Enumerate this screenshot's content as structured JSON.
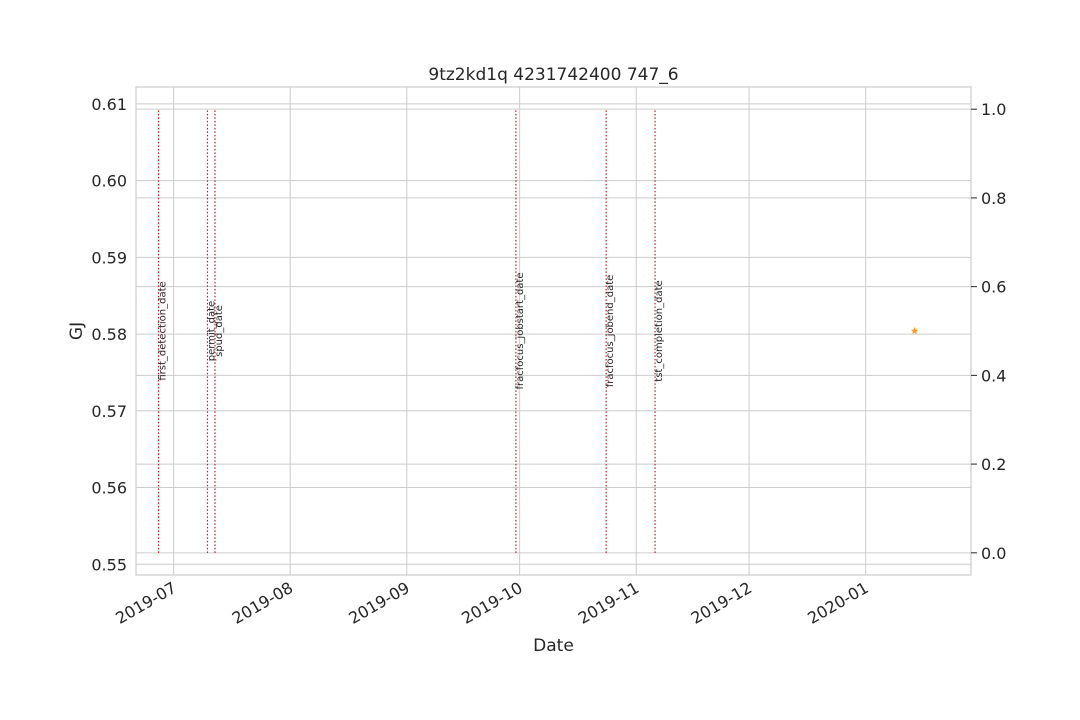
{
  "chart_data": {
    "type": "line",
    "title": "9tz2kd1q 4231742400 747_6",
    "xlabel": "Date",
    "ylabel": "GJ",
    "ylabel_color": "#1f77b4",
    "grid": true,
    "x_ticks": [
      "2019-07",
      "2019-08",
      "2019-09",
      "2019-10",
      "2019-11",
      "2019-12",
      "2020-01"
    ],
    "x_range": [
      "2019-06-21",
      "2020-01-29"
    ],
    "y_left_ticks": [
      "0.55",
      "0.56",
      "0.57",
      "0.58",
      "0.59",
      "0.60",
      "0.61"
    ],
    "ylim_left": [
      0.5486,
      0.6122
    ],
    "y_right_ticks": [
      "0.0",
      "0.2",
      "0.4",
      "0.6",
      "0.8",
      "1.0"
    ],
    "ylim_right": [
      -0.05,
      1.05
    ],
    "events": [
      {
        "label": "first_detection_date",
        "date": "2019-06-27"
      },
      {
        "label": "permit_date",
        "date": "2019-07-10"
      },
      {
        "label": "spud_date",
        "date": "2019-07-12"
      },
      {
        "label": "fracfocus_jobstart_date",
        "date": "2019-09-30"
      },
      {
        "label": "fracfocus_jobend_date",
        "date": "2019-10-24"
      },
      {
        "label": "tst_completion_date",
        "date": "2019-11-06"
      }
    ],
    "event_line_color": "#b22222",
    "series": [
      {
        "x": [
          "2020-01-14"
        ],
        "y": [
          0.5804
        ],
        "marker": "star",
        "color": "#ff9f1c"
      }
    ]
  }
}
